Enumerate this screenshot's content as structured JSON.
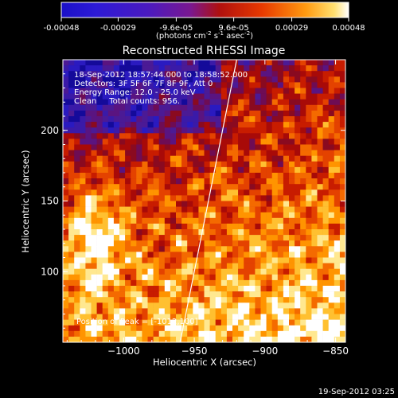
{
  "colorbar": {
    "tick_labels": [
      "-0.00048",
      "-0.00029",
      "-9.6e-05",
      "9.6e-05",
      "0.00029",
      "0.00048"
    ],
    "tick_values": [
      -0.00048,
      -0.00029,
      -9.6e-05,
      9.6e-05,
      0.00029,
      0.00048
    ],
    "range": [
      -0.00048,
      0.00048
    ],
    "units_prefix": "(photons cm",
    "units_sup1": "-2",
    "units_mid": " s",
    "units_sup2": "-1",
    "units_mid2": " asec",
    "units_sup3": "-2",
    "units_suffix": ")"
  },
  "chart_data": {
    "type": "heatmap",
    "title": "Reconstructed RHESSI Image",
    "xlabel": "Heliocentric X (arcsec)",
    "ylabel": "Heliocentric Y (arcsec)",
    "xlim": [
      -1043,
      -843
    ],
    "ylim": [
      50,
      250
    ],
    "x_ticks": [
      -1000,
      -950,
      -900,
      -850
    ],
    "x_tick_labels": [
      "−1000",
      "−950",
      "−900",
      "−850"
    ],
    "y_ticks": [
      100,
      150,
      200
    ],
    "y_tick_labels": [
      "100",
      "150",
      "200"
    ],
    "annotations": [
      "18-Sep-2012 18:57:44.000 to 18:58:52.000",
      "Detectors: 3F 5F 6F 7F 8F 9F, Att 0",
      "Energy Range: 12.0 - 25.0 keV",
      "Clean     Total counts: 956."
    ],
    "peak_label": "Position of Peak = [-1012,100]",
    "peak_position": [
      -1012,
      100
    ],
    "limb_line": [
      [
        -960,
        50
      ],
      [
        -920,
        250
      ]
    ]
  },
  "footer": {
    "timestamp": "19-Sep-2012 03:25"
  }
}
